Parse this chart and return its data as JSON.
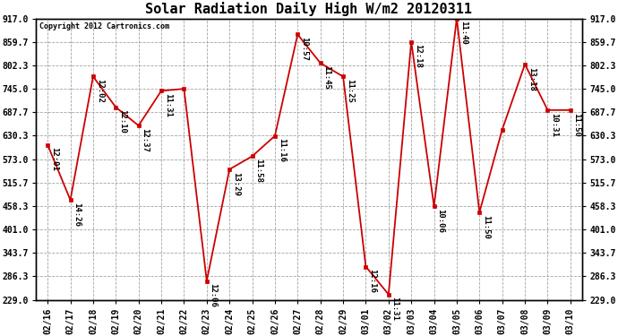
{
  "title": "Solar Radiation Daily High W/m2 20120311",
  "copyright": "Copyright 2012 Cartronics.com",
  "dates": [
    "02/16",
    "02/17",
    "02/18",
    "02/19",
    "02/20",
    "02/21",
    "02/22",
    "02/23",
    "02/24",
    "02/25",
    "02/26",
    "02/27",
    "02/28",
    "02/29",
    "03/01",
    "03/02",
    "03/03",
    "03/04",
    "03/05",
    "03/06",
    "03/07",
    "03/08",
    "03/09",
    "03/10"
  ],
  "values": [
    608,
    473,
    775,
    700,
    655,
    740,
    745,
    275,
    548,
    580,
    630,
    878,
    808,
    775,
    310,
    242,
    860,
    458,
    917,
    443,
    645,
    805,
    693,
    693
  ],
  "times": [
    "12:01",
    "14:26",
    "12:02",
    "12:10",
    "12:37",
    "11:31",
    "",
    "12:06",
    "13:29",
    "11:58",
    "11:16",
    "10:57",
    "11:45",
    "11:25",
    "12:16",
    "11:31",
    "12:18",
    "10:06",
    "11:40",
    "11:50",
    "",
    "13:18",
    "10:31",
    "11:50"
  ],
  "ylim_min": 229.0,
  "ylim_max": 917.0,
  "yticks": [
    229.0,
    286.3,
    343.7,
    401.0,
    458.3,
    515.7,
    573.0,
    630.3,
    687.7,
    745.0,
    802.3,
    859.7,
    917.0
  ],
  "line_color": "#cc0000",
  "marker_color": "#cc0000",
  "bg_color": "#ffffff",
  "grid_color": "#999999",
  "title_fontsize": 11,
  "tick_fontsize": 7,
  "label_fontsize": 6.5,
  "copyright_fontsize": 6
}
